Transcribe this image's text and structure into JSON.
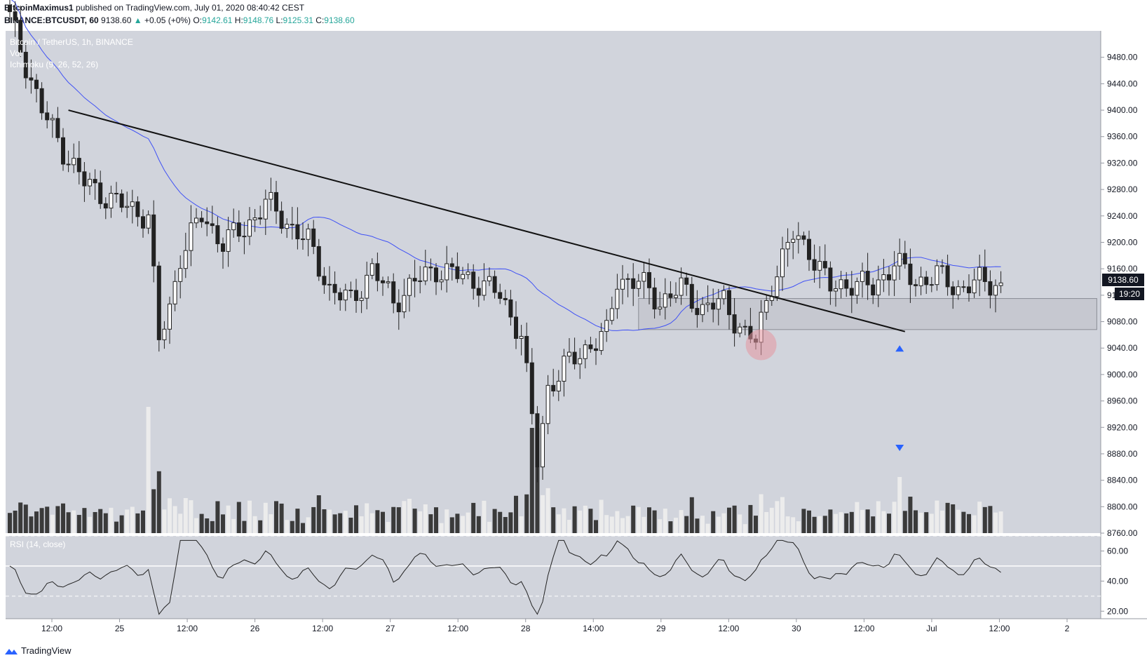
{
  "header": {
    "publisher": "BitcoinMaximus1",
    "published_text": "published on TradingView.com, July 01, 2020 08:40:42 CEST",
    "symbol": "BINANCE:BTCUSDT, 60",
    "last": "9138.60",
    "change": "+0.05 (+0%)",
    "o_label": "O:",
    "o": "9142.61",
    "h_label": "H:",
    "h": "9148.76",
    "l_label": "L:",
    "l": "9125.31",
    "c_label": "C:",
    "c": "9138.60"
  },
  "legend": {
    "main": "Bitcoin / TetherUS, 1h, BINANCE",
    "vol": "Vol",
    "ichimoku": "Ichimoku (9, 26, 52, 26)",
    "rsi": "RSI (14, close)"
  },
  "price_badge": "9138.60",
  "time_badge": "19:20",
  "footer": {
    "brand": "TradingView"
  },
  "colors": {
    "background": "#d1d4dc",
    "up": "#ffffff",
    "down": "#222222",
    "ma": "#3f51f5",
    "rsi": "#222222",
    "last_price": "#131722"
  },
  "chart_data": {
    "type": "candlestick",
    "price_axis": {
      "ylim": [
        8760,
        9520
      ],
      "ticks": [
        "9480.00",
        "9440.00",
        "9400.00",
        "9360.00",
        "9320.00",
        "9280.00",
        "9240.00",
        "9200.00",
        "9160.00",
        "9120.00",
        "9080.00",
        "9040.00",
        "9000.00",
        "8960.00",
        "8920.00",
        "8880.00",
        "8840.00",
        "8800.00",
        "8760.00"
      ]
    },
    "rsi_axis": {
      "ylim": [
        15,
        70
      ],
      "ticks": [
        "60.00",
        "40.00",
        "20.00"
      ],
      "levels": [
        70,
        50,
        30
      ]
    },
    "time_axis": {
      "ticks": [
        "12:00",
        "25",
        "12:00",
        "26",
        "12:00",
        "27",
        "12:00",
        "28",
        "14:00",
        "29",
        "12:00",
        "30",
        "12:00",
        "Jul",
        "12:00",
        "2"
      ]
    },
    "waypoints_close": [
      [
        0,
        9540
      ],
      [
        6,
        9400
      ],
      [
        10,
        9340
      ],
      [
        14,
        9290
      ],
      [
        20,
        9260
      ],
      [
        26,
        9240
      ],
      [
        28,
        9050
      ],
      [
        30,
        9100
      ],
      [
        32,
        9180
      ],
      [
        36,
        9240
      ],
      [
        40,
        9200
      ],
      [
        44,
        9220
      ],
      [
        48,
        9260
      ],
      [
        52,
        9230
      ],
      [
        56,
        9200
      ],
      [
        60,
        9130
      ],
      [
        64,
        9110
      ],
      [
        68,
        9160
      ],
      [
        72,
        9110
      ],
      [
        76,
        9140
      ],
      [
        80,
        9160
      ],
      [
        84,
        9150
      ],
      [
        88,
        9140
      ],
      [
        92,
        9120
      ],
      [
        96,
        9060
      ],
      [
        99,
        8870
      ],
      [
        101,
        8980
      ],
      [
        104,
        9010
      ],
      [
        108,
        9040
      ],
      [
        112,
        9060
      ],
      [
        114,
        9145
      ],
      [
        118,
        9140
      ],
      [
        122,
        9110
      ],
      [
        126,
        9130
      ],
      [
        130,
        9100
      ],
      [
        134,
        9110
      ],
      [
        138,
        9060
      ],
      [
        140,
        9050
      ],
      [
        143,
        9140
      ],
      [
        147,
        9210
      ],
      [
        150,
        9190
      ],
      [
        154,
        9130
      ],
      [
        158,
        9140
      ],
      [
        162,
        9130
      ],
      [
        166,
        9170
      ],
      [
        170,
        9140
      ],
      [
        174,
        9150
      ],
      [
        178,
        9130
      ],
      [
        182,
        9140
      ],
      [
        186,
        9138.6
      ]
    ],
    "downtrend_line": {
      "from": [
        11,
        9400
      ],
      "to": [
        168,
        9065
      ]
    },
    "support_zone": {
      "from_index": 118,
      "to_index": 204,
      "price_low": 9068,
      "price_high": 9115
    },
    "highlight_circle": {
      "index": 141,
      "price": 9045
    },
    "marker_up": {
      "index": 167,
      "price": 9040
    },
    "marker_down": {
      "index": 167,
      "location": "volume"
    }
  }
}
